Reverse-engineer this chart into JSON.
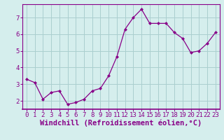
{
  "x": [
    0,
    1,
    2,
    3,
    4,
    5,
    6,
    7,
    8,
    9,
    10,
    11,
    12,
    13,
    14,
    15,
    16,
    17,
    18,
    19,
    20,
    21,
    22,
    23
  ],
  "y": [
    3.3,
    3.1,
    2.1,
    2.5,
    2.6,
    1.8,
    1.9,
    2.1,
    2.6,
    2.75,
    3.5,
    4.65,
    6.3,
    7.0,
    7.5,
    6.65,
    6.65,
    6.65,
    6.1,
    5.75,
    4.9,
    5.0,
    5.45,
    6.1
  ],
  "line_color": "#880088",
  "marker": "D",
  "marker_size": 2.0,
  "bg_color": "#d5eeed",
  "grid_color": "#aacfcf",
  "xlabel": "Windchill (Refroidissement éolien,°C)",
  "xlim": [
    -0.5,
    23.5
  ],
  "ylim": [
    1.5,
    7.8
  ],
  "yticks": [
    2,
    3,
    4,
    5,
    6,
    7
  ],
  "xticks": [
    0,
    1,
    2,
    3,
    4,
    5,
    6,
    7,
    8,
    9,
    10,
    11,
    12,
    13,
    14,
    15,
    16,
    17,
    18,
    19,
    20,
    21,
    22,
    23
  ],
  "tick_label_fontsize": 6.5,
  "xlabel_fontsize": 7.5,
  "spine_color": "#880088",
  "axis_bottom_color": "#880088"
}
